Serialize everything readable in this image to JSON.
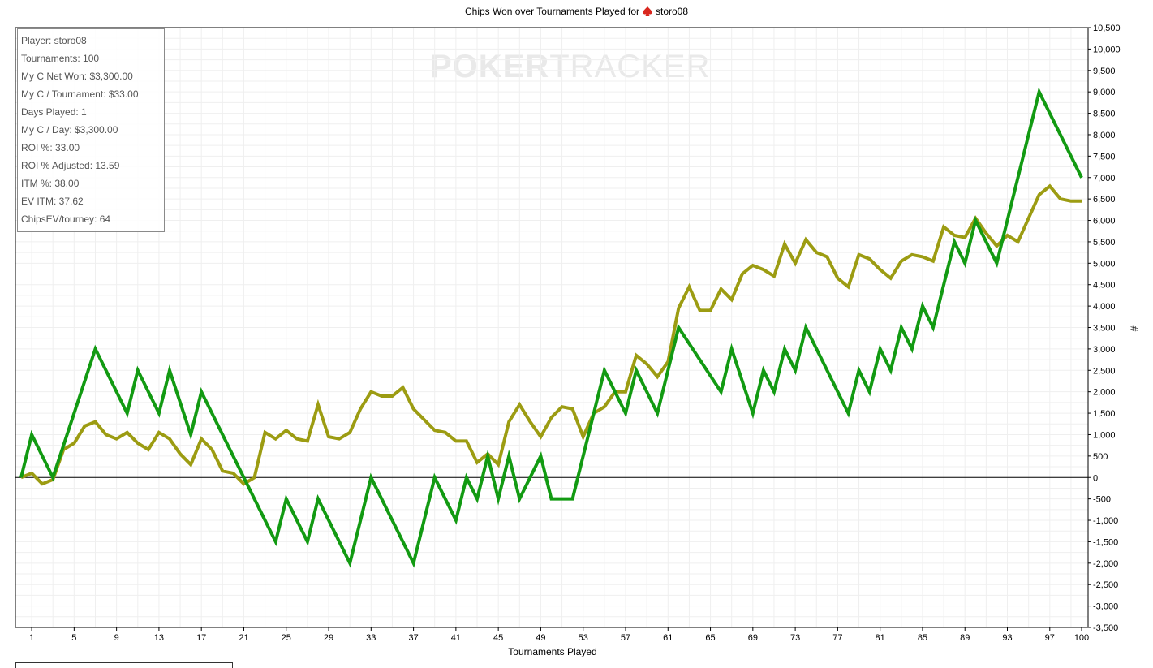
{
  "chart_data": {
    "type": "line",
    "title": "Chips Won over Tournaments Played for",
    "player_name": "storo08",
    "xlabel": "Tournaments Played",
    "ylabel": "#",
    "xlim": [
      0,
      100
    ],
    "ylim": [
      -3500,
      10500
    ],
    "x_ticks": [
      1,
      5,
      9,
      13,
      17,
      21,
      25,
      29,
      33,
      37,
      41,
      45,
      49,
      53,
      57,
      61,
      65,
      69,
      73,
      77,
      81,
      85,
      89,
      93,
      97,
      100
    ],
    "y_ticks": [
      -3500,
      -3000,
      -2500,
      -2000,
      -1500,
      -1000,
      -500,
      0,
      500,
      1000,
      1500,
      2000,
      2500,
      3000,
      3500,
      4000,
      4500,
      5000,
      5500,
      6000,
      6500,
      7000,
      7500,
      8000,
      8500,
      9000,
      9500,
      10000,
      10500
    ],
    "y_tick_labels": [
      "-3,500",
      "-3,000",
      "-2,500",
      "-2,000",
      "-1,500",
      "-1,000",
      "-500",
      "0",
      "500",
      "1,000",
      "1,500",
      "2,000",
      "2,500",
      "3,000",
      "3,500",
      "4,000",
      "4,500",
      "5,000",
      "5,500",
      "6,000",
      "6,500",
      "7,000",
      "7,500",
      "8,000",
      "8,500",
      "9,000",
      "9,500",
      "10,000",
      "10,500"
    ],
    "grid": true,
    "series": [
      {
        "name": "",
        "color": "#129a12",
        "x": [
          0,
          1,
          3,
          7,
          10,
          11,
          13,
          14,
          16,
          17,
          19,
          24,
          25,
          27,
          28,
          31,
          33,
          37,
          39,
          41,
          42,
          43,
          44,
          45,
          46,
          47,
          49,
          50,
          52,
          55,
          57,
          58,
          60,
          62,
          66,
          67,
          69,
          70,
          71,
          72,
          73,
          74,
          78,
          79,
          80,
          81,
          82,
          83,
          84,
          85,
          86,
          88,
          89,
          90,
          92,
          96,
          100
        ],
        "y": [
          0,
          1000,
          0,
          3000,
          1500,
          2500,
          1500,
          2500,
          1000,
          2000,
          1000,
          -1500,
          -500,
          -1500,
          -500,
          -2000,
          0,
          -2000,
          0,
          -1000,
          0,
          -500,
          500,
          -500,
          500,
          -500,
          500,
          -500,
          -500,
          2500,
          1500,
          2500,
          1500,
          3500,
          2000,
          3000,
          1500,
          2500,
          2000,
          3000,
          2500,
          3500,
          1500,
          2500,
          2000,
          3000,
          2500,
          3500,
          3000,
          4000,
          3500,
          5500,
          5000,
          6000,
          5000,
          9000,
          7000
        ]
      },
      {
        "name": "",
        "color": "#9c9c12",
        "x": [
          0,
          1,
          2,
          3,
          4,
          5,
          6,
          7,
          8,
          9,
          10,
          11,
          12,
          13,
          14,
          15,
          16,
          17,
          18,
          19,
          20,
          21,
          22,
          23,
          24,
          25,
          26,
          27,
          28,
          29,
          30,
          31,
          32,
          33,
          34,
          35,
          36,
          37,
          38,
          39,
          40,
          41,
          42,
          43,
          44,
          45,
          46,
          47,
          48,
          49,
          50,
          51,
          52,
          53,
          54,
          55,
          56,
          57,
          58,
          59,
          60,
          61,
          62,
          63,
          64,
          65,
          66,
          67,
          68,
          69,
          70,
          71,
          72,
          73,
          74,
          75,
          76,
          77,
          78,
          79,
          80,
          81,
          82,
          83,
          84,
          85,
          86,
          87,
          88,
          89,
          90,
          91,
          92,
          93,
          94,
          95,
          96,
          97,
          98,
          99,
          100
        ],
        "y": [
          0,
          100,
          -150,
          -50,
          650,
          800,
          1200,
          1300,
          1000,
          900,
          1050,
          800,
          650,
          1050,
          900,
          550,
          300,
          900,
          650,
          150,
          100,
          -150,
          0,
          1050,
          900,
          1100,
          900,
          850,
          1700,
          950,
          900,
          1050,
          1600,
          2000,
          1900,
          1900,
          2100,
          1600,
          1350,
          1100,
          1050,
          850,
          850,
          350,
          550,
          300,
          1300,
          1700,
          1300,
          950,
          1400,
          1650,
          1600,
          950,
          1500,
          1650,
          2000,
          2000,
          2850,
          2650,
          2350,
          2700,
          3950,
          4450,
          3900,
          3900,
          4400,
          4150,
          4750,
          4950,
          4850,
          4700,
          5450,
          5000,
          5550,
          5250,
          5150,
          4650,
          4450,
          5200,
          5100,
          4850,
          4650,
          5050,
          5200,
          5150,
          5050,
          5850,
          5650,
          5600,
          6050,
          5700,
          5400,
          5650,
          5500,
          6050,
          6600,
          6800,
          6500,
          6450,
          6450
        ]
      }
    ]
  },
  "stats": [
    "Player: storo08",
    "Tournaments: 100",
    "My C Net Won: $3,300.00",
    "My C / Tournament: $33.00",
    "Days Played: 1",
    "My C / Day: $3,300.00",
    "ROI %: 33.00",
    "ROI % Adjusted: 13.59",
    "ITM %: 38.00",
    "EV ITM: 37.62",
    "ChipsEV/tourney: 64"
  ],
  "watermark": {
    "text_a": "PO",
    "text_b": "KER",
    "text_c": "TRACKER",
    "icon": "chip-icon"
  },
  "title_icon": "spade-icon",
  "colors": {
    "green_line": "#129a12",
    "olive_line": "#9c9c12",
    "grid": "#ececec",
    "suit": "#d9271e"
  }
}
